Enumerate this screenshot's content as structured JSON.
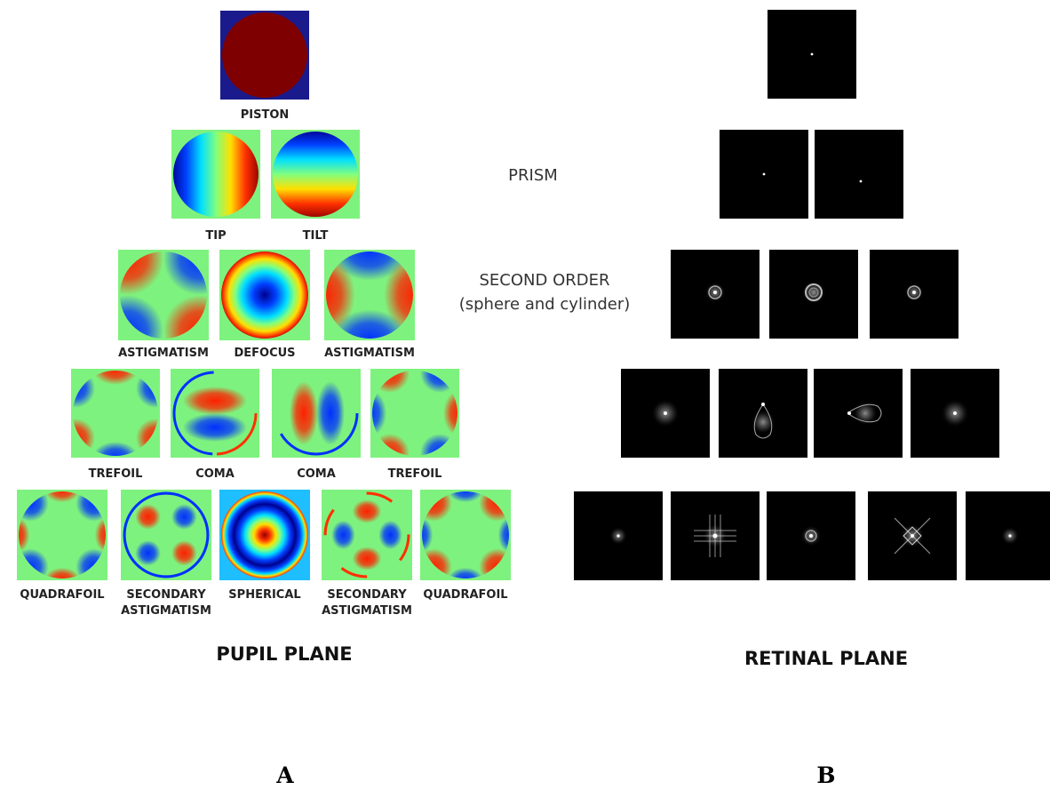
{
  "pupil_plane": {
    "title": "PUPIL PLANE",
    "panel_letter": "A",
    "rows": [
      {
        "modes": [
          {
            "key": "piston",
            "labels": [
              "PISTON"
            ],
            "icon": "piston-phase-map"
          }
        ]
      },
      {
        "modes": [
          {
            "key": "tip",
            "labels": [
              "TIP"
            ],
            "icon": "tip-phase-map"
          },
          {
            "key": "tilt",
            "labels": [
              "TILT"
            ],
            "icon": "tilt-phase-map"
          }
        ]
      },
      {
        "modes": [
          {
            "key": "astig-oblique",
            "labels": [
              "ASTIGMATISM"
            ],
            "icon": "astigmatism-phase-map"
          },
          {
            "key": "defocus",
            "labels": [
              "DEFOCUS"
            ],
            "icon": "defocus-phase-map"
          },
          {
            "key": "astig-vertical",
            "labels": [
              "ASTIGMATISM"
            ],
            "icon": "astigmatism-phase-map"
          }
        ]
      },
      {
        "modes": [
          {
            "key": "trefoil-1",
            "labels": [
              "TREFOIL"
            ],
            "icon": "trefoil-phase-map"
          },
          {
            "key": "coma-1",
            "labels": [
              "COMA"
            ],
            "icon": "coma-phase-map"
          },
          {
            "key": "coma-2",
            "labels": [
              "COMA"
            ],
            "icon": "coma-phase-map"
          },
          {
            "key": "trefoil-2",
            "labels": [
              "TREFOIL"
            ],
            "icon": "trefoil-phase-map"
          }
        ]
      },
      {
        "modes": [
          {
            "key": "quadrafoil-1",
            "labels": [
              "QUADRAFOIL"
            ],
            "icon": "quadrafoil-phase-map"
          },
          {
            "key": "sec-astig-1",
            "labels": [
              "SECONDARY",
              "ASTIGMATISM"
            ],
            "icon": "secondary-astigmatism-phase-map"
          },
          {
            "key": "spherical",
            "labels": [
              "SPHERICAL"
            ],
            "icon": "spherical-phase-map"
          },
          {
            "key": "sec-astig-2",
            "labels": [
              "SECONDARY",
              "ASTIGMATISM"
            ],
            "icon": "secondary-astigmatism-phase-map"
          },
          {
            "key": "quadrafoil-2",
            "labels": [
              "QUADRAFOIL"
            ],
            "icon": "quadrafoil-phase-map"
          }
        ]
      }
    ]
  },
  "retinal_plane": {
    "title": "RETINAL PLANE",
    "panel_letter": "B",
    "row_labels": [
      {
        "lines": [
          "PRISM"
        ]
      },
      {
        "lines": [
          "SECOND ORDER",
          "(sphere and cylinder)"
        ]
      }
    ],
    "rows": [
      {
        "psfs": [
          {
            "key": "piston",
            "icon": "point-spread-image"
          }
        ]
      },
      {
        "psfs": [
          {
            "key": "tip",
            "icon": "point-spread-image"
          },
          {
            "key": "tilt",
            "icon": "point-spread-image"
          }
        ]
      },
      {
        "psfs": [
          {
            "key": "astig-oblique",
            "icon": "point-spread-image"
          },
          {
            "key": "defocus",
            "icon": "point-spread-image"
          },
          {
            "key": "astig-vertical",
            "icon": "point-spread-image"
          }
        ]
      },
      {
        "psfs": [
          {
            "key": "trefoil-1",
            "icon": "point-spread-image"
          },
          {
            "key": "coma-1",
            "icon": "point-spread-image"
          },
          {
            "key": "coma-2",
            "icon": "point-spread-image"
          },
          {
            "key": "trefoil-2",
            "icon": "point-spread-image"
          }
        ]
      },
      {
        "psfs": [
          {
            "key": "quadrafoil-1",
            "icon": "point-spread-image"
          },
          {
            "key": "sec-astig-1",
            "icon": "point-spread-image"
          },
          {
            "key": "spherical",
            "icon": "point-spread-image"
          },
          {
            "key": "sec-astig-2",
            "icon": "point-spread-image"
          },
          {
            "key": "quadrafoil-2",
            "icon": "point-spread-image"
          }
        ]
      }
    ]
  },
  "colors": {
    "jet_background": "#7ef27e",
    "piston_background": "#1a1a8c",
    "piston_disk": "#7f0000",
    "spherical_background": "#1fbfff",
    "psf_background": "#000000",
    "psf_spot": "#ffffff"
  }
}
